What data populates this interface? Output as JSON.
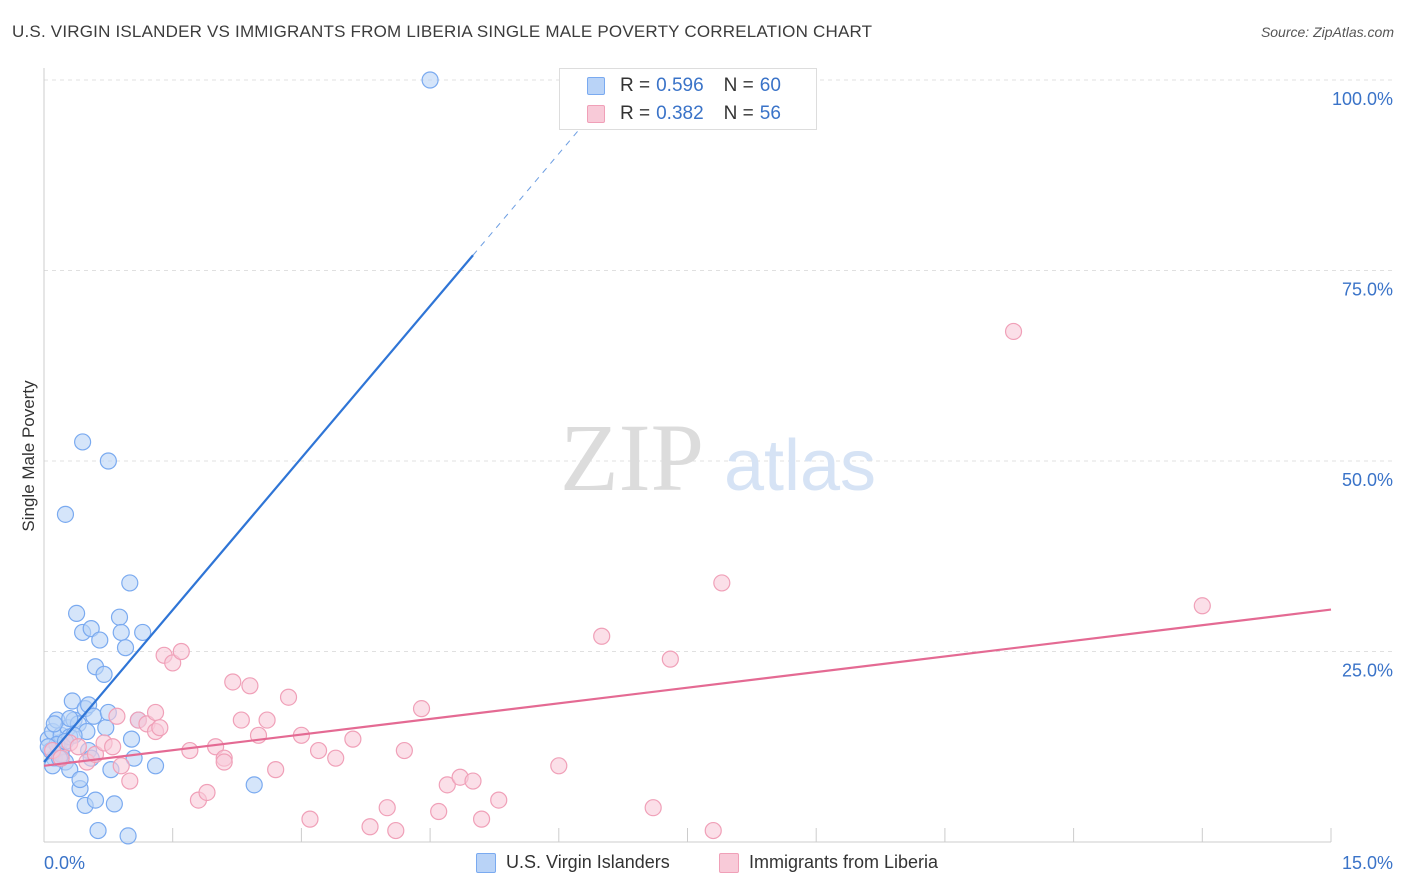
{
  "title": "U.S. VIRGIN ISLANDER VS IMMIGRANTS FROM LIBERIA SINGLE MALE POVERTY CORRELATION CHART",
  "source": "Source: ZipAtlas.com",
  "watermark": {
    "zip": "ZIP",
    "atlas": "atlas"
  },
  "legend_top": {
    "r_label": "R =",
    "n_label": "N =",
    "rows": [
      {
        "r": "0.596",
        "n": "60"
      },
      {
        "r": "0.382",
        "n": "56"
      }
    ]
  },
  "bottom_legend": [
    "U.S. Virgin Islanders",
    "Immigrants from Liberia"
  ],
  "chart_data": {
    "type": "scatter",
    "title": "U.S. VIRGIN ISLANDER VS IMMIGRANTS FROM LIBERIA SINGLE MALE POVERTY CORRELATION CHART",
    "xlabel": "",
    "ylabel": "Single Male Poverty",
    "xlim": [
      0,
      15
    ],
    "ylim": [
      0,
      100
    ],
    "x_tick_labels": [
      "0.0%",
      "15.0%"
    ],
    "y_ticks": [
      25,
      50,
      75,
      100
    ],
    "y_tick_labels": [
      "25.0%",
      "50.0%",
      "75.0%",
      "100.0%"
    ],
    "grid": true,
    "series": [
      {
        "name": "U.S. Virgin Islanders",
        "color": "#7aaaf0",
        "fill": "#b9d3f7",
        "line_color": "#2f75d6",
        "trend": {
          "x0": 0.0,
          "y0": 10.5,
          "x1": 5.0,
          "y1": 77.0,
          "dash_x1": 6.5,
          "dash_y1": 97.0
        },
        "points": [
          [
            0.05,
            13.5
          ],
          [
            0.08,
            12.0
          ],
          [
            0.1,
            14.5
          ],
          [
            0.12,
            11.0
          ],
          [
            0.15,
            16.0
          ],
          [
            0.18,
            13.0
          ],
          [
            0.2,
            14.0
          ],
          [
            0.22,
            12.5
          ],
          [
            0.25,
            10.5
          ],
          [
            0.28,
            15.0
          ],
          [
            0.3,
            13.8
          ],
          [
            0.33,
            18.5
          ],
          [
            0.35,
            16.0
          ],
          [
            0.38,
            30.0
          ],
          [
            0.4,
            15.5
          ],
          [
            0.42,
            7.0
          ],
          [
            0.45,
            27.5
          ],
          [
            0.48,
            17.5
          ],
          [
            0.5,
            14.5
          ],
          [
            0.52,
            18.0
          ],
          [
            0.55,
            28.0
          ],
          [
            0.58,
            16.5
          ],
          [
            0.6,
            23.0
          ],
          [
            0.65,
            26.5
          ],
          [
            0.7,
            22.0
          ],
          [
            0.72,
            15.0
          ],
          [
            0.75,
            17.0
          ],
          [
            0.78,
            9.5
          ],
          [
            0.82,
            5.0
          ],
          [
            0.88,
            29.5
          ],
          [
            0.9,
            27.5
          ],
          [
            0.95,
            25.5
          ],
          [
            1.0,
            34.0
          ],
          [
            1.02,
            13.5
          ],
          [
            1.05,
            11.0
          ],
          [
            1.1,
            16.0
          ],
          [
            1.15,
            27.5
          ],
          [
            1.3,
            10.0
          ],
          [
            2.45,
            7.5
          ],
          [
            0.25,
            43.0
          ],
          [
            0.45,
            52.5
          ],
          [
            0.75,
            50.0
          ],
          [
            4.5,
            100.0
          ],
          [
            0.1,
            10.0
          ],
          [
            0.2,
            11.5
          ],
          [
            0.3,
            9.5
          ],
          [
            0.35,
            14.0
          ],
          [
            0.48,
            4.8
          ],
          [
            0.6,
            5.5
          ],
          [
            0.63,
            1.5
          ],
          [
            0.98,
            0.8
          ],
          [
            0.52,
            12.0
          ],
          [
            0.15,
            12.8
          ],
          [
            0.25,
            13.2
          ],
          [
            0.42,
            8.2
          ],
          [
            0.55,
            11.0
          ],
          [
            0.12,
            15.5
          ],
          [
            0.05,
            12.5
          ],
          [
            0.18,
            11.0
          ],
          [
            0.3,
            16.2
          ]
        ]
      },
      {
        "name": "Immigrants from Liberia",
        "color": "#f0a0b8",
        "fill": "#f8cad8",
        "line_color": "#e46a93",
        "trend": {
          "x0": 0.0,
          "y0": 10.0,
          "x1": 15.0,
          "y1": 30.5
        },
        "points": [
          [
            0.1,
            12.0
          ],
          [
            0.2,
            11.0
          ],
          [
            0.3,
            13.0
          ],
          [
            0.4,
            12.5
          ],
          [
            0.5,
            10.5
          ],
          [
            0.6,
            11.5
          ],
          [
            0.7,
            13.0
          ],
          [
            0.8,
            12.5
          ],
          [
            0.9,
            10.0
          ],
          [
            1.0,
            8.0
          ],
          [
            1.1,
            16.0
          ],
          [
            1.2,
            15.5
          ],
          [
            1.3,
            17.0
          ],
          [
            1.4,
            24.5
          ],
          [
            1.5,
            23.5
          ],
          [
            1.6,
            25.0
          ],
          [
            1.7,
            12.0
          ],
          [
            1.8,
            5.5
          ],
          [
            1.9,
            6.5
          ],
          [
            2.0,
            12.5
          ],
          [
            2.1,
            11.0
          ],
          [
            2.2,
            21.0
          ],
          [
            2.3,
            16.0
          ],
          [
            2.4,
            20.5
          ],
          [
            2.5,
            14.0
          ],
          [
            2.6,
            16.0
          ],
          [
            2.7,
            9.5
          ],
          [
            2.85,
            19.0
          ],
          [
            3.0,
            14.0
          ],
          [
            3.1,
            3.0
          ],
          [
            3.2,
            12.0
          ],
          [
            3.4,
            11.0
          ],
          [
            3.6,
            13.5
          ],
          [
            3.8,
            2.0
          ],
          [
            4.0,
            4.5
          ],
          [
            4.1,
            1.5
          ],
          [
            4.2,
            12.0
          ],
          [
            4.4,
            17.5
          ],
          [
            4.6,
            4.0
          ],
          [
            4.7,
            7.5
          ],
          [
            4.85,
            8.5
          ],
          [
            5.0,
            8.0
          ],
          [
            5.1,
            3.0
          ],
          [
            5.3,
            5.5
          ],
          [
            6.0,
            10.0
          ],
          [
            6.5,
            27.0
          ],
          [
            7.1,
            4.5
          ],
          [
            7.3,
            24.0
          ],
          [
            7.8,
            1.5
          ],
          [
            7.9,
            34.0
          ],
          [
            11.3,
            67.0
          ],
          [
            13.5,
            31.0
          ],
          [
            1.3,
            14.5
          ],
          [
            0.85,
            16.5
          ],
          [
            1.35,
            15.0
          ],
          [
            2.1,
            10.5
          ]
        ]
      }
    ]
  }
}
